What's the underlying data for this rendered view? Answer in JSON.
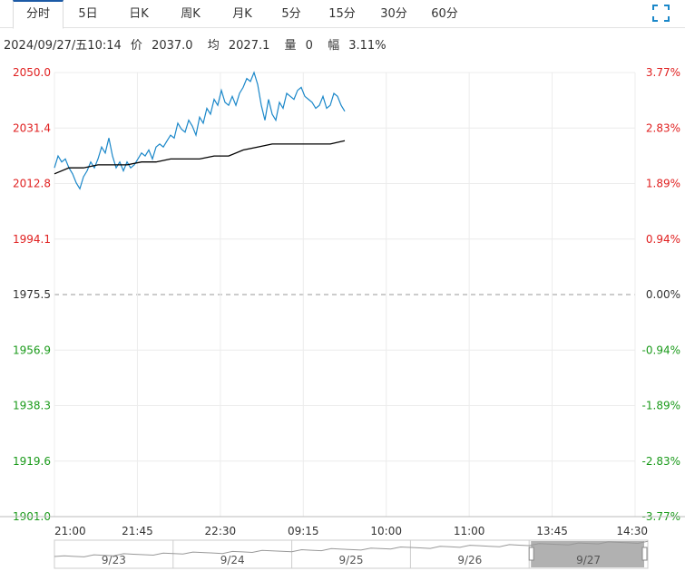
{
  "tabs": [
    {
      "label": "分时",
      "active": true
    },
    {
      "label": "5日"
    },
    {
      "label": "日K"
    },
    {
      "label": "周K"
    },
    {
      "label": "月K"
    },
    {
      "label": "5分"
    },
    {
      "label": "15分"
    },
    {
      "label": "30分"
    },
    {
      "label": "60分"
    }
  ],
  "info": {
    "datetime": "2024/09/27/五10:14",
    "price_label": "价",
    "price": "2037.0",
    "avg_label": "均",
    "avg": "2027.1",
    "vol_label": "量",
    "vol": "0",
    "change_label": "幅",
    "change": "3.11%"
  },
  "colors": {
    "price_line": "#1a87c9",
    "avg_line": "#000000",
    "up": "#e02020",
    "down": "#1a9a1a",
    "neutral": "#333333",
    "grid": "#ececec",
    "accent": "#1c5aa6"
  },
  "icons": {
    "fullscreen": "fullscreen-icon"
  },
  "chart_data": {
    "type": "line",
    "title": "",
    "base_price": 1975.5,
    "ylim": [
      1901.0,
      2050.0
    ],
    "y_ticks_left": [
      "2050.0",
      "2031.4",
      "2012.8",
      "1994.1",
      "1975.5",
      "1956.9",
      "1938.3",
      "1919.6",
      "1901.0"
    ],
    "y_ticks_right": [
      "3.77%",
      "2.83%",
      "1.89%",
      "0.94%",
      "0.00%",
      "-0.94%",
      "-1.89%",
      "-2.83%",
      "-3.77%"
    ],
    "x_ticks": [
      "21:00",
      "21:45",
      "22:30",
      "09:15",
      "10:00",
      "11:00",
      "13:45",
      "14:30"
    ],
    "x_range_ticks": [
      0,
      8
    ],
    "series": [
      {
        "x": [
          0,
          0.05,
          0.1,
          0.15,
          0.2,
          0.25,
          0.3,
          0.35,
          0.4,
          0.45,
          0.5,
          0.55,
          0.6,
          0.65,
          0.7,
          0.75,
          0.8,
          0.85,
          0.9,
          0.95,
          1.0,
          1.05,
          1.1,
          1.15,
          1.2,
          1.25,
          1.3,
          1.35,
          1.4,
          1.45,
          1.5,
          1.55,
          1.6,
          1.65,
          1.7,
          1.75,
          1.8,
          1.85,
          1.9,
          1.95,
          2.0,
          2.05,
          2.1,
          2.15,
          2.2,
          2.25,
          2.3,
          2.35,
          2.4,
          2.45,
          2.5,
          2.55,
          2.6,
          2.65,
          2.7,
          2.75,
          2.8,
          2.85,
          2.9,
          2.95,
          3.0,
          3.05,
          3.1,
          3.15,
          3.2,
          3.25,
          3.3,
          3.35,
          3.4,
          3.45,
          3.5,
          3.55,
          3.6,
          3.65,
          3.7,
          3.75,
          3.8,
          3.85,
          3.9,
          3.95,
          4.0
        ],
        "values": [
          2018,
          2022,
          2020,
          2021,
          2018,
          2016,
          2013,
          2011,
          2015,
          2017,
          2020,
          2018,
          2021,
          2025,
          2023,
          2028,
          2022,
          2018,
          2020,
          2017,
          2020,
          2018,
          2019,
          2021,
          2023,
          2022,
          2024,
          2021,
          2025,
          2026,
          2025,
          2027,
          2029,
          2028,
          2033,
          2031,
          2030,
          2034,
          2032,
          2029,
          2035,
          2033,
          2038,
          2036,
          2041,
          2039,
          2044,
          2040,
          2039,
          2042,
          2039,
          2043,
          2045,
          2048,
          2047,
          2050,
          2046,
          2039,
          2034,
          2041,
          2036,
          2034,
          2040,
          2038,
          2043,
          2042,
          2041,
          2044,
          2045,
          2042,
          2041,
          2040,
          2038,
          2039,
          2042,
          2038,
          2039,
          2043,
          2042,
          2039,
          2037
        ],
        "color": "#1a87c9"
      },
      {
        "x": [
          0,
          0.2,
          0.4,
          0.6,
          0.8,
          1.0,
          1.2,
          1.4,
          1.6,
          1.8,
          2.0,
          2.2,
          2.4,
          2.6,
          2.8,
          3.0,
          3.2,
          3.4,
          3.6,
          3.8,
          4.0
        ],
        "values": [
          2016,
          2018,
          2018,
          2019,
          2019,
          2019,
          2020,
          2020,
          2021,
          2021,
          2021,
          2022,
          2022,
          2024,
          2025,
          2026,
          2026,
          2026,
          2026,
          2026,
          2027.1
        ],
        "color": "#000000"
      }
    ],
    "navigator": {
      "labels": [
        "9/23",
        "9/24",
        "9/25",
        "9/26",
        "9/27"
      ]
    }
  }
}
